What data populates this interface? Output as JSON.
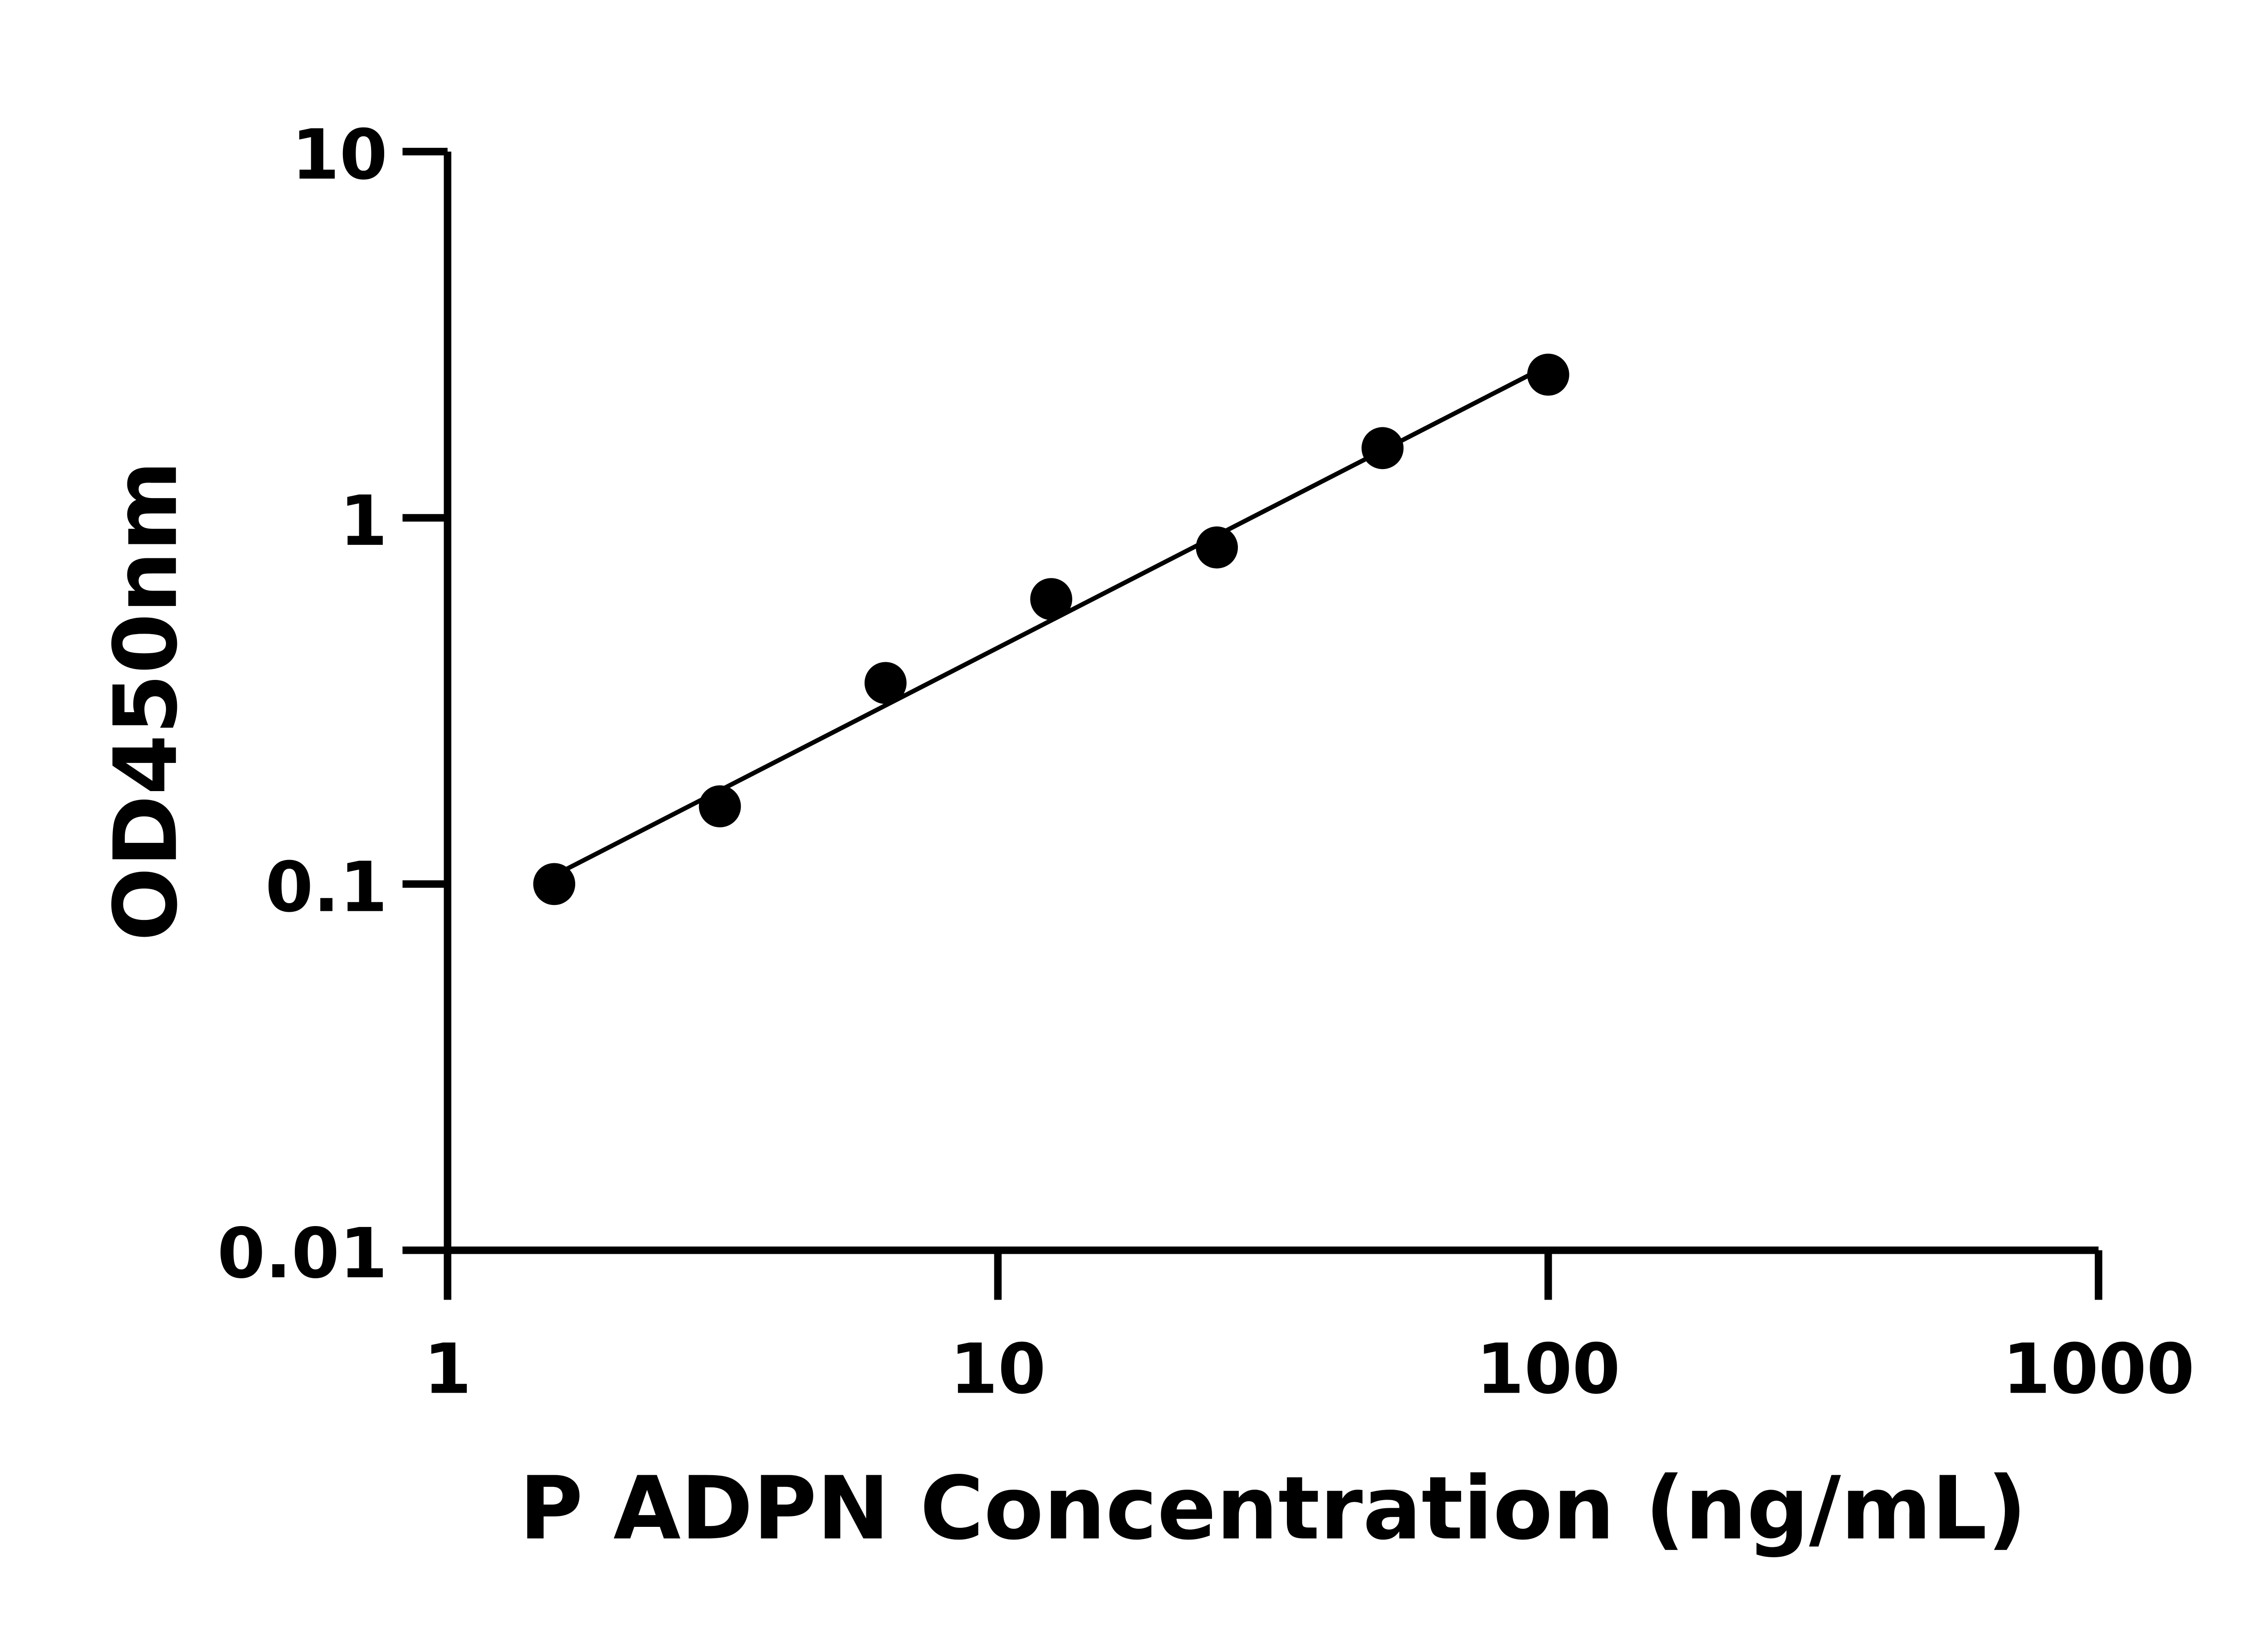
{
  "chart_data": {
    "type": "scatter",
    "xlabel": "P ADPN Concentration (ng/mL)",
    "ylabel": "OD450nm",
    "x_scale": "log",
    "y_scale": "log",
    "xlim": [
      1,
      1000
    ],
    "ylim": [
      0.01,
      10
    ],
    "x_ticks": [
      {
        "value": 1,
        "label": "1"
      },
      {
        "value": 10,
        "label": "10"
      },
      {
        "value": 100,
        "label": "100"
      },
      {
        "value": 1000,
        "label": "1000"
      }
    ],
    "y_ticks": [
      {
        "value": 0.01,
        "label": "0.01"
      },
      {
        "value": 0.1,
        "label": "0.1"
      },
      {
        "value": 1,
        "label": "1"
      },
      {
        "value": 10,
        "label": "10"
      }
    ],
    "grid": false,
    "fit_line": "log-log linear fit",
    "x": [
      1.5625,
      3.125,
      6.25,
      12.5,
      25,
      50,
      100
    ],
    "y": [
      0.1,
      0.163,
      0.354,
      0.6,
      0.83,
      1.55,
      2.46
    ],
    "color": "#000000"
  }
}
